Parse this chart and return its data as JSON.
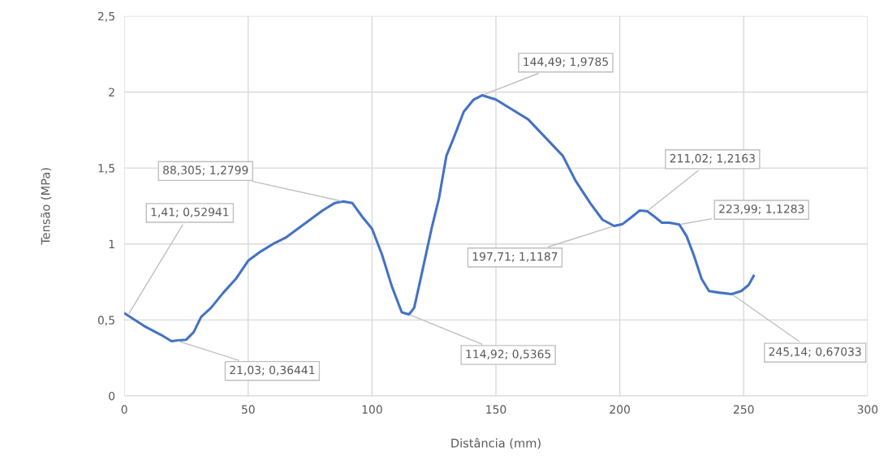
{
  "chart_data": {
    "type": "line",
    "xlabel": "Distância (mm)",
    "ylabel": "Tensão (MPa)",
    "x": [
      0,
      1.41,
      8,
      15,
      19,
      21.03,
      25,
      28,
      31,
      35,
      40,
      45,
      50,
      55,
      60,
      65,
      70,
      75,
      80,
      85,
      88.305,
      92,
      96,
      100,
      104,
      108,
      112,
      114.92,
      117,
      120,
      124,
      127,
      130,
      133,
      137,
      141,
      144.49,
      150,
      156,
      163,
      170,
      177,
      182,
      188,
      193,
      197.71,
      201,
      205,
      208,
      211.02,
      214,
      217,
      220,
      223.99,
      227,
      230,
      233,
      236,
      240,
      245.14,
      249,
      252,
      254
    ],
    "series": [
      {
        "color": "#4472c4",
        "values": [
          0.545,
          0.52941,
          0.46,
          0.4,
          0.36,
          0.36441,
          0.37,
          0.42,
          0.52,
          0.58,
          0.68,
          0.77,
          0.89,
          0.95,
          1.0,
          1.04,
          1.1,
          1.16,
          1.22,
          1.27,
          1.2799,
          1.27,
          1.18,
          1.1,
          0.93,
          0.72,
          0.55,
          0.5365,
          0.58,
          0.8,
          1.1,
          1.3,
          1.58,
          1.7,
          1.87,
          1.95,
          1.9785,
          1.95,
          1.89,
          1.82,
          1.7,
          1.58,
          1.42,
          1.27,
          1.16,
          1.1187,
          1.13,
          1.18,
          1.22,
          1.2163,
          1.18,
          1.14,
          1.14,
          1.1283,
          1.05,
          0.92,
          0.77,
          0.69,
          0.68,
          0.67033,
          0.69,
          0.73,
          0.79
        ]
      }
    ],
    "annotations": [
      {
        "text": "1,41; 0,52941",
        "x": 1.41,
        "y": 0.52941
      },
      {
        "text": "21,03; 0,36441",
        "x": 21.03,
        "y": 0.36441
      },
      {
        "text": "88,305; 1,2799",
        "x": 88.305,
        "y": 1.2799
      },
      {
        "text": "114,92; 0,5365",
        "x": 114.92,
        "y": 0.5365
      },
      {
        "text": "144,49; 1,9785",
        "x": 144.49,
        "y": 1.9785
      },
      {
        "text": "197,71; 1,1187",
        "x": 197.71,
        "y": 1.1187
      },
      {
        "text": "211,02; 1,2163",
        "x": 211.02,
        "y": 1.2163
      },
      {
        "text": "223,99; 1,1283",
        "x": 223.99,
        "y": 1.1283
      },
      {
        "text": "245,14; 0,67033",
        "x": 245.14,
        "y": 0.67033
      }
    ],
    "xlim": [
      0,
      300
    ],
    "xticks": [
      0,
      50,
      100,
      150,
      200,
      250,
      300
    ],
    "ylim": [
      0,
      2.5
    ],
    "yticks": [
      0,
      {
        "value": 0.5,
        "label": "0,5"
      },
      1,
      {
        "value": 1.5,
        "label": "1,5"
      },
      2,
      {
        "value": 2.5,
        "label": "2,5"
      }
    ],
    "grid": true,
    "legend": false,
    "marker": "none",
    "line_style": "solid"
  }
}
